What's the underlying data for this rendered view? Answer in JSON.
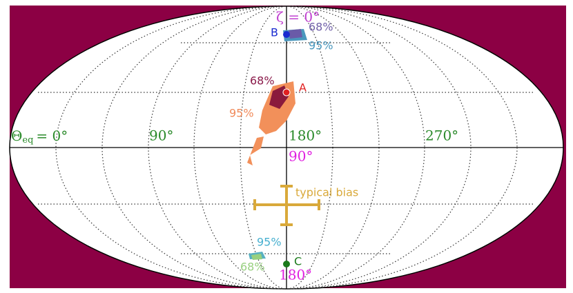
{
  "top_label": "ζ = 0°",
  "bottom_label": "180°",
  "center_lat_label": "90°",
  "longitude_axis": {
    "symbol": "Θ",
    "subscript": "eq",
    "zero": "= 0°",
    "labels": [
      "90°",
      "180°",
      "270°"
    ]
  },
  "points": [
    {
      "name": "A",
      "inner": "68%",
      "outer": "95%"
    },
    {
      "name": "B",
      "inner": "68%",
      "outer": "95%"
    },
    {
      "name": "C",
      "inner": "68%",
      "outer": "95%"
    }
  ],
  "bias_label": "typical bias"
}
